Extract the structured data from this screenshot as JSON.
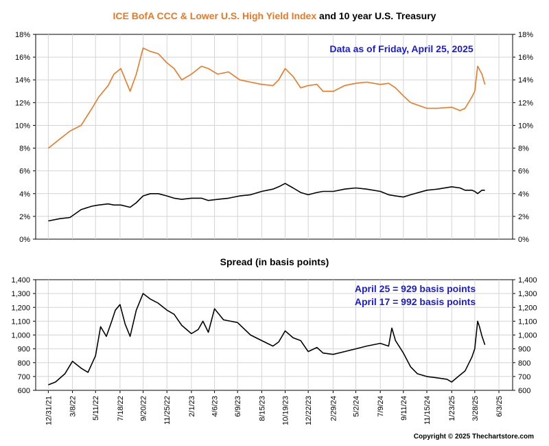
{
  "title": {
    "part1": "ICE BofA CCC & Lower U.S. High Yield Index",
    "part2": " and 10 year U.S. Treasury",
    "part1_color": "#ee7722",
    "part2_color": "#000000"
  },
  "copyright": "Copyright © 2025 Thechartstore.com",
  "chart_data": [
    {
      "type": "line",
      "title": "",
      "annotation": "Data as of Friday, April 25, 2025",
      "ylim": [
        0,
        18
      ],
      "y_ticks": [
        "0%",
        "2%",
        "4%",
        "6%",
        "8%",
        "10%",
        "12%",
        "14%",
        "16%",
        "18%"
      ],
      "y_tick_values": [
        0,
        2,
        4,
        6,
        8,
        10,
        12,
        14,
        16,
        18
      ],
      "grid": true,
      "x": [
        "2021-12-31",
        "2022-02-01",
        "2022-03-01",
        "2022-04-01",
        "2022-05-01",
        "2022-05-20",
        "2022-06-15",
        "2022-07-01",
        "2022-07-20",
        "2022-08-15",
        "2022-09-01",
        "2022-09-20",
        "2022-10-10",
        "2022-11-01",
        "2022-11-25",
        "2022-12-15",
        "2023-01-05",
        "2023-02-01",
        "2023-03-01",
        "2023-03-20",
        "2023-04-15",
        "2023-05-15",
        "2023-06-15",
        "2023-07-15",
        "2023-08-15",
        "2023-09-15",
        "2023-10-01",
        "2023-10-19",
        "2023-11-10",
        "2023-12-01",
        "2023-12-22",
        "2024-01-15",
        "2024-02-01",
        "2024-03-01",
        "2024-04-01",
        "2024-05-02",
        "2024-06-01",
        "2024-07-09",
        "2024-08-01",
        "2024-08-20",
        "2024-09-11",
        "2024-10-01",
        "2024-11-15",
        "2024-12-15",
        "2025-01-23",
        "2025-02-15",
        "2025-03-01",
        "2025-03-20",
        "2025-03-28",
        "2025-04-05",
        "2025-04-17",
        "2025-04-25"
      ],
      "series": [
        {
          "name": "",
          "color": "#ee7722",
          "values": [
            8.0,
            8.8,
            9.5,
            10.0,
            11.5,
            12.5,
            13.5,
            14.5,
            15.0,
            13.0,
            14.5,
            16.8,
            16.5,
            16.3,
            15.5,
            15.0,
            14.0,
            14.5,
            15.2,
            15.0,
            14.5,
            14.7,
            14.0,
            13.8,
            13.6,
            13.5,
            14.0,
            15.0,
            14.3,
            13.3,
            13.5,
            13.6,
            13.0,
            13.0,
            13.5,
            13.7,
            13.8,
            13.6,
            13.7,
            13.3,
            12.6,
            12.0,
            11.5,
            11.5,
            11.6,
            11.3,
            11.5,
            12.5,
            13.0,
            15.2,
            14.5,
            13.6
          ]
        },
        {
          "name": "",
          "color": "#000000",
          "values": [
            1.6,
            1.8,
            1.9,
            2.6,
            2.9,
            3.0,
            3.1,
            3.0,
            3.0,
            2.8,
            3.2,
            3.8,
            4.0,
            4.0,
            3.8,
            3.6,
            3.5,
            3.6,
            3.6,
            3.4,
            3.5,
            3.6,
            3.8,
            3.9,
            4.2,
            4.4,
            4.6,
            4.9,
            4.5,
            4.1,
            3.9,
            4.1,
            4.2,
            4.2,
            4.4,
            4.5,
            4.4,
            4.2,
            3.9,
            3.8,
            3.7,
            3.9,
            4.3,
            4.4,
            4.6,
            4.5,
            4.3,
            4.3,
            4.2,
            4.0,
            4.3,
            4.3
          ]
        }
      ]
    },
    {
      "type": "line",
      "title": "Spread (in basis points)",
      "annotations": [
        "April 25 = 929 basis points",
        "April 17 = 992 basis points"
      ],
      "ylim": [
        600,
        1400
      ],
      "y_ticks": [
        "600",
        "700",
        "800",
        "900",
        "1,000",
        "1,100",
        "1,200",
        "1,300",
        "1,400"
      ],
      "y_tick_values": [
        600,
        700,
        800,
        900,
        1000,
        1100,
        1200,
        1300,
        1400
      ],
      "grid": true,
      "x_ticks": [
        "12/31/21",
        "3/8/22",
        "5/11/22",
        "7/18/22",
        "9/20/22",
        "11/25/22",
        "2/1/23",
        "4/6/23",
        "6/9/23",
        "8/15/23",
        "10/19/23",
        "12/22/23",
        "2/29/24",
        "5/2/24",
        "7/9/24",
        "9/11/24",
        "11/15/24",
        "1/23/25",
        "3/28/25",
        "6/3/25"
      ],
      "x_tick_dates": [
        "2021-12-31",
        "2022-03-08",
        "2022-05-11",
        "2022-07-18",
        "2022-09-20",
        "2022-11-25",
        "2023-02-01",
        "2023-04-06",
        "2023-06-09",
        "2023-08-15",
        "2023-10-19",
        "2023-12-22",
        "2024-02-29",
        "2024-05-02",
        "2024-07-09",
        "2024-09-11",
        "2024-11-15",
        "2025-01-23",
        "2025-03-28",
        "2025-06-03"
      ],
      "x": [
        "2021-12-31",
        "2022-01-20",
        "2022-02-15",
        "2022-03-08",
        "2022-04-01",
        "2022-04-20",
        "2022-05-11",
        "2022-05-25",
        "2022-06-10",
        "2022-06-25",
        "2022-07-05",
        "2022-07-18",
        "2022-08-01",
        "2022-08-15",
        "2022-09-01",
        "2022-09-20",
        "2022-10-10",
        "2022-11-01",
        "2022-11-25",
        "2022-12-15",
        "2023-01-05",
        "2023-02-01",
        "2023-02-20",
        "2023-03-05",
        "2023-03-20",
        "2023-04-06",
        "2023-05-01",
        "2023-06-09",
        "2023-07-15",
        "2023-08-15",
        "2023-09-15",
        "2023-10-01",
        "2023-10-19",
        "2023-11-10",
        "2023-12-01",
        "2023-12-22",
        "2024-01-15",
        "2024-02-01",
        "2024-02-29",
        "2024-04-01",
        "2024-05-02",
        "2024-06-01",
        "2024-07-09",
        "2024-08-01",
        "2024-08-10",
        "2024-08-20",
        "2024-09-11",
        "2024-10-01",
        "2024-10-20",
        "2024-11-15",
        "2024-12-15",
        "2025-01-10",
        "2025-01-23",
        "2025-02-10",
        "2025-03-01",
        "2025-03-20",
        "2025-03-28",
        "2025-04-05",
        "2025-04-10",
        "2025-04-17",
        "2025-04-25"
      ],
      "series": [
        {
          "name": "",
          "color": "#000000",
          "values": [
            640,
            660,
            720,
            810,
            760,
            730,
            850,
            1060,
            990,
            1100,
            1180,
            1220,
            1080,
            990,
            1180,
            1300,
            1260,
            1230,
            1180,
            1150,
            1070,
            1010,
            1040,
            1100,
            1020,
            1190,
            1110,
            1090,
            1000,
            960,
            920,
            950,
            1030,
            980,
            960,
            880,
            910,
            870,
            860,
            880,
            900,
            920,
            940,
            920,
            1050,
            960,
            870,
            770,
            720,
            700,
            690,
            680,
            660,
            700,
            740,
            840,
            900,
            1100,
            1060,
            992,
            929
          ]
        }
      ]
    }
  ]
}
